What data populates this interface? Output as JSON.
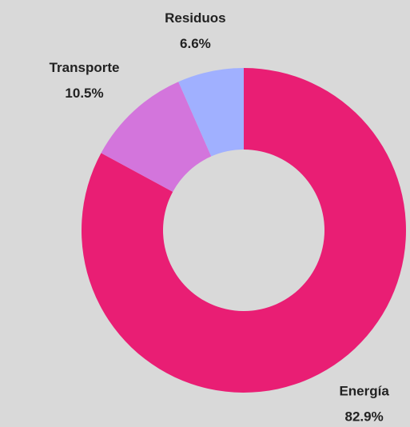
{
  "chart_data": {
    "type": "pie",
    "categories": [
      "Energía",
      "Transporte",
      "Residuos"
    ],
    "values": [
      82.9,
      10.5,
      6.6
    ],
    "value_labels": [
      "82.9%",
      "10.5%",
      "6.6%"
    ],
    "colors": [
      "#e91e74",
      "#d375dc",
      "#a0b0ff"
    ]
  }
}
